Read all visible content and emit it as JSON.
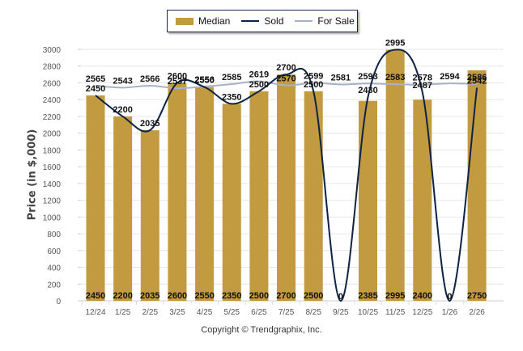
{
  "chart_data": {
    "type": "bar",
    "title": "",
    "xlabel": "",
    "ylabel": "Price (in $,000)",
    "ylim": [
      0,
      3000
    ],
    "yticks": [
      0,
      200,
      400,
      600,
      800,
      1000,
      1200,
      1400,
      1600,
      1800,
      2000,
      2200,
      2400,
      2600,
      2800,
      3000
    ],
    "grid": true,
    "legend_position": "top-center",
    "categories": [
      "12/24",
      "1/25",
      "2/25",
      "3/25",
      "4/25",
      "5/25",
      "6/25",
      "7/25",
      "8/25",
      "9/25",
      "10/25",
      "11/25",
      "12/25",
      "1/26",
      "2/26"
    ],
    "series": [
      {
        "name": "Median",
        "type": "bar",
        "color": "#c29a3f",
        "values": [
          2450,
          2200,
          2035,
          2600,
          2550,
          2350,
          2500,
          2700,
          2500,
          0,
          2385,
          2995,
          2400,
          0,
          2750
        ]
      },
      {
        "name": "Sold",
        "type": "line",
        "color": "#0d2344",
        "values": [
          2450,
          2200,
          2035,
          2600,
          2550,
          2350,
          2500,
          2700,
          2500,
          0,
          2430,
          2995,
          2487,
          0,
          2542
        ]
      },
      {
        "name": "For Sale",
        "type": "line",
        "color": "#a7b2c8",
        "values": [
          2565,
          2543,
          2566,
          2537,
          2556,
          2585,
          2619,
          2570,
          2599,
          2581,
          2593,
          2583,
          2578,
          2594,
          2586
        ]
      }
    ]
  },
  "legend": {
    "median": "Median",
    "sold": "Sold",
    "for_sale": "For Sale"
  },
  "footer": "Copyright © Trendgraphix, Inc."
}
